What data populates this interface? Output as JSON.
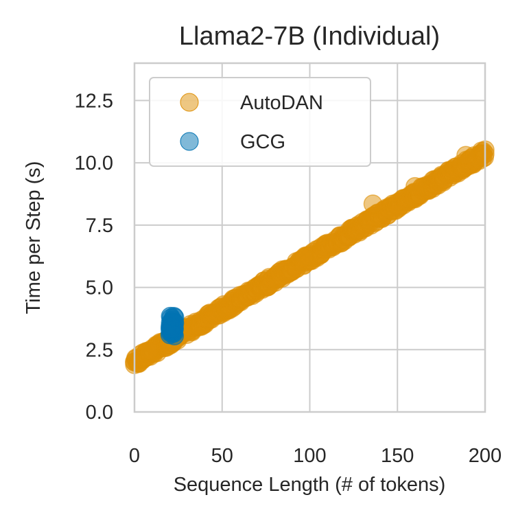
{
  "chart_data": {
    "type": "scatter",
    "title": "Llama2-7B (Individual)",
    "xlabel": "Sequence Length (# of tokens)",
    "ylabel": "Time per Step (s)",
    "xlim": [
      0,
      200
    ],
    "ylim": [
      0,
      14
    ],
    "xticks": [
      "0",
      "50",
      "100",
      "150",
      "200"
    ],
    "yticks": [
      "0.0",
      "2.5",
      "5.0",
      "7.5",
      "10.0",
      "12.5"
    ],
    "grid": true,
    "legend_position": "upper-left",
    "series": [
      {
        "name": "AutoDAN",
        "color": "#de8f05",
        "trend": {
          "intercept": 2.0,
          "slope": 0.042
        },
        "x_range": [
          0,
          200
        ],
        "outliers": [
          {
            "x": 136,
            "y": 8.35
          },
          {
            "x": 160,
            "y": 9.05
          },
          {
            "x": 189,
            "y": 10.3
          },
          {
            "x": 97,
            "y": 6.2
          },
          {
            "x": 8,
            "y": 2.45
          }
        ]
      },
      {
        "name": "GCG",
        "color": "#0173b2",
        "x_range": [
          20,
          23
        ],
        "y_range": [
          3.05,
          3.85
        ]
      }
    ]
  }
}
